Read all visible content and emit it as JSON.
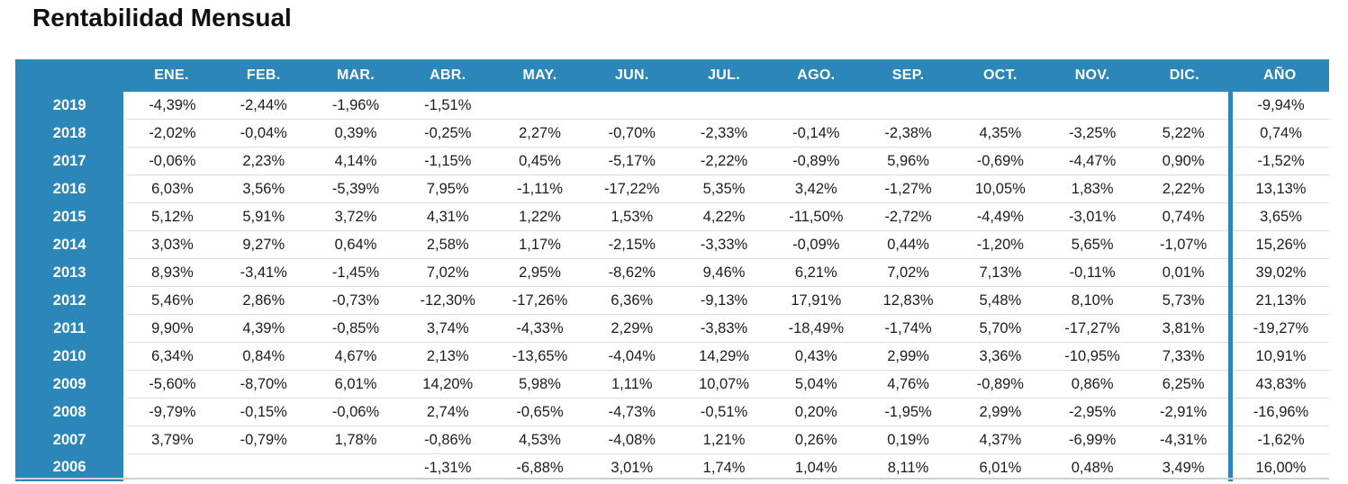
{
  "title": "Rentabilidad Mensual",
  "colors": {
    "accent_blue": "#2C87B9",
    "header_text": "#ffffff",
    "cell_text": "#1c1c1c",
    "row_divider": "#dcdcdc",
    "bottom_divider": "#cfcfcf"
  },
  "chart_data": {
    "type": "table",
    "title": "Rentabilidad Mensual",
    "columns": [
      "ENE.",
      "FEB.",
      "MAR.",
      "ABR.",
      "MAY.",
      "JUN.",
      "JUL.",
      "AGO.",
      "SEP.",
      "OCT.",
      "NOV.",
      "DIC.",
      "AÑO"
    ],
    "rows": [
      {
        "year": "2019",
        "values": [
          "-4,39%",
          "-2,44%",
          "-1,96%",
          "-1,51%",
          "",
          "",
          "",
          "",
          "",
          "",
          "",
          ""
        ],
        "total": "-9,94%"
      },
      {
        "year": "2018",
        "values": [
          "-2,02%",
          "-0,04%",
          "0,39%",
          "-0,25%",
          "2,27%",
          "-0,70%",
          "-2,33%",
          "-0,14%",
          "-2,38%",
          "4,35%",
          "-3,25%",
          "5,22%"
        ],
        "total": "0,74%"
      },
      {
        "year": "2017",
        "values": [
          "-0,06%",
          "2,23%",
          "4,14%",
          "-1,15%",
          "0,45%",
          "-5,17%",
          "-2,22%",
          "-0,89%",
          "5,96%",
          "-0,69%",
          "-4,47%",
          "0,90%"
        ],
        "total": "-1,52%"
      },
      {
        "year": "2016",
        "values": [
          "6,03%",
          "3,56%",
          "-5,39%",
          "7,95%",
          "-1,11%",
          "-17,22%",
          "5,35%",
          "3,42%",
          "-1,27%",
          "10,05%",
          "1,83%",
          "2,22%"
        ],
        "total": "13,13%"
      },
      {
        "year": "2015",
        "values": [
          "5,12%",
          "5,91%",
          "3,72%",
          "4,31%",
          "1,22%",
          "1,53%",
          "4,22%",
          "-11,50%",
          "-2,72%",
          "-4,49%",
          "-3,01%",
          "0,74%"
        ],
        "total": "3,65%"
      },
      {
        "year": "2014",
        "values": [
          "3,03%",
          "9,27%",
          "0,64%",
          "2,58%",
          "1,17%",
          "-2,15%",
          "-3,33%",
          "-0,09%",
          "0,44%",
          "-1,20%",
          "5,65%",
          "-1,07%"
        ],
        "total": "15,26%"
      },
      {
        "year": "2013",
        "values": [
          "8,93%",
          "-3,41%",
          "-1,45%",
          "7,02%",
          "2,95%",
          "-8,62%",
          "9,46%",
          "6,21%",
          "7,02%",
          "7,13%",
          "-0,11%",
          "0,01%"
        ],
        "total": "39,02%"
      },
      {
        "year": "2012",
        "values": [
          "5,46%",
          "2,86%",
          "-0,73%",
          "-12,30%",
          "-17,26%",
          "6,36%",
          "-9,13%",
          "17,91%",
          "12,83%",
          "5,48%",
          "8,10%",
          "5,73%"
        ],
        "total": "21,13%"
      },
      {
        "year": "2011",
        "values": [
          "9,90%",
          "4,39%",
          "-0,85%",
          "3,74%",
          "-4,33%",
          "2,29%",
          "-3,83%",
          "-18,49%",
          "-1,74%",
          "5,70%",
          "-17,27%",
          "3,81%"
        ],
        "total": "-19,27%"
      },
      {
        "year": "2010",
        "values": [
          "6,34%",
          "0,84%",
          "4,67%",
          "2,13%",
          "-13,65%",
          "-4,04%",
          "14,29%",
          "0,43%",
          "2,99%",
          "3,36%",
          "-10,95%",
          "7,33%"
        ],
        "total": "10,91%"
      },
      {
        "year": "2009",
        "values": [
          "-5,60%",
          "-8,70%",
          "6,01%",
          "14,20%",
          "5,98%",
          "1,11%",
          "10,07%",
          "5,04%",
          "4,76%",
          "-0,89%",
          "0,86%",
          "6,25%"
        ],
        "total": "43,83%"
      },
      {
        "year": "2008",
        "values": [
          "-9,79%",
          "-0,15%",
          "-0,06%",
          "2,74%",
          "-0,65%",
          "-4,73%",
          "-0,51%",
          "0,20%",
          "-1,95%",
          "2,99%",
          "-2,95%",
          "-2,91%"
        ],
        "total": "-16,96%"
      },
      {
        "year": "2007",
        "values": [
          "3,79%",
          "-0,79%",
          "1,78%",
          "-0,86%",
          "4,53%",
          "-4,08%",
          "1,21%",
          "0,26%",
          "0,19%",
          "4,37%",
          "-6,99%",
          "-4,31%"
        ],
        "total": "-1,62%"
      },
      {
        "year": "2006",
        "values": [
          "",
          "",
          "",
          "-1,31%",
          "-6,88%",
          "3,01%",
          "1,74%",
          "1,04%",
          "8,11%",
          "6,01%",
          "0,48%",
          "3,49%"
        ],
        "total": "16,00%"
      }
    ]
  }
}
